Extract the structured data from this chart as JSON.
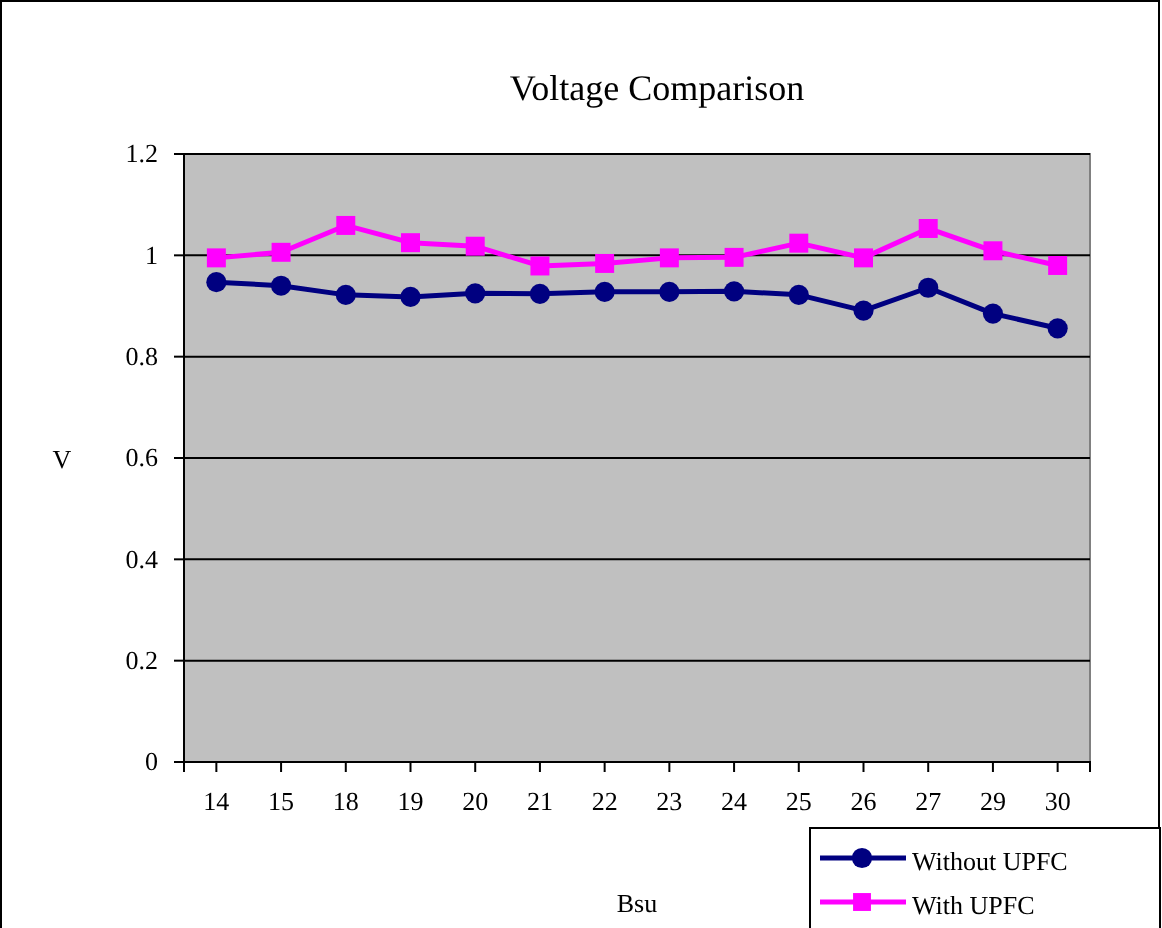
{
  "chart_data": {
    "type": "line",
    "title": "Voltage Comparison",
    "xlabel": "Bsu",
    "ylabel": "V",
    "categories": [
      "14",
      "15",
      "18",
      "19",
      "20",
      "21",
      "22",
      "23",
      "24",
      "25",
      "26",
      "27",
      "29",
      "30"
    ],
    "series": [
      {
        "name": "Without UPFC",
        "color": "#000080",
        "marker": "circle",
        "values": [
          0.947,
          0.94,
          0.922,
          0.918,
          0.925,
          0.924,
          0.928,
          0.928,
          0.929,
          0.922,
          0.891,
          0.936,
          0.885,
          0.856
        ]
      },
      {
        "name": "With UPFC",
        "color": "#ff00ff",
        "marker": "square",
        "values": [
          0.995,
          1.006,
          1.059,
          1.025,
          1.018,
          0.979,
          0.984,
          0.995,
          0.996,
          1.024,
          0.995,
          1.053,
          1.009,
          0.98
        ]
      }
    ],
    "ylim": [
      0,
      1.2
    ],
    "yticks": [
      0,
      0.2,
      0.4,
      0.6,
      0.8,
      1,
      1.2
    ],
    "grid": "y",
    "legend": "bottom right"
  }
}
